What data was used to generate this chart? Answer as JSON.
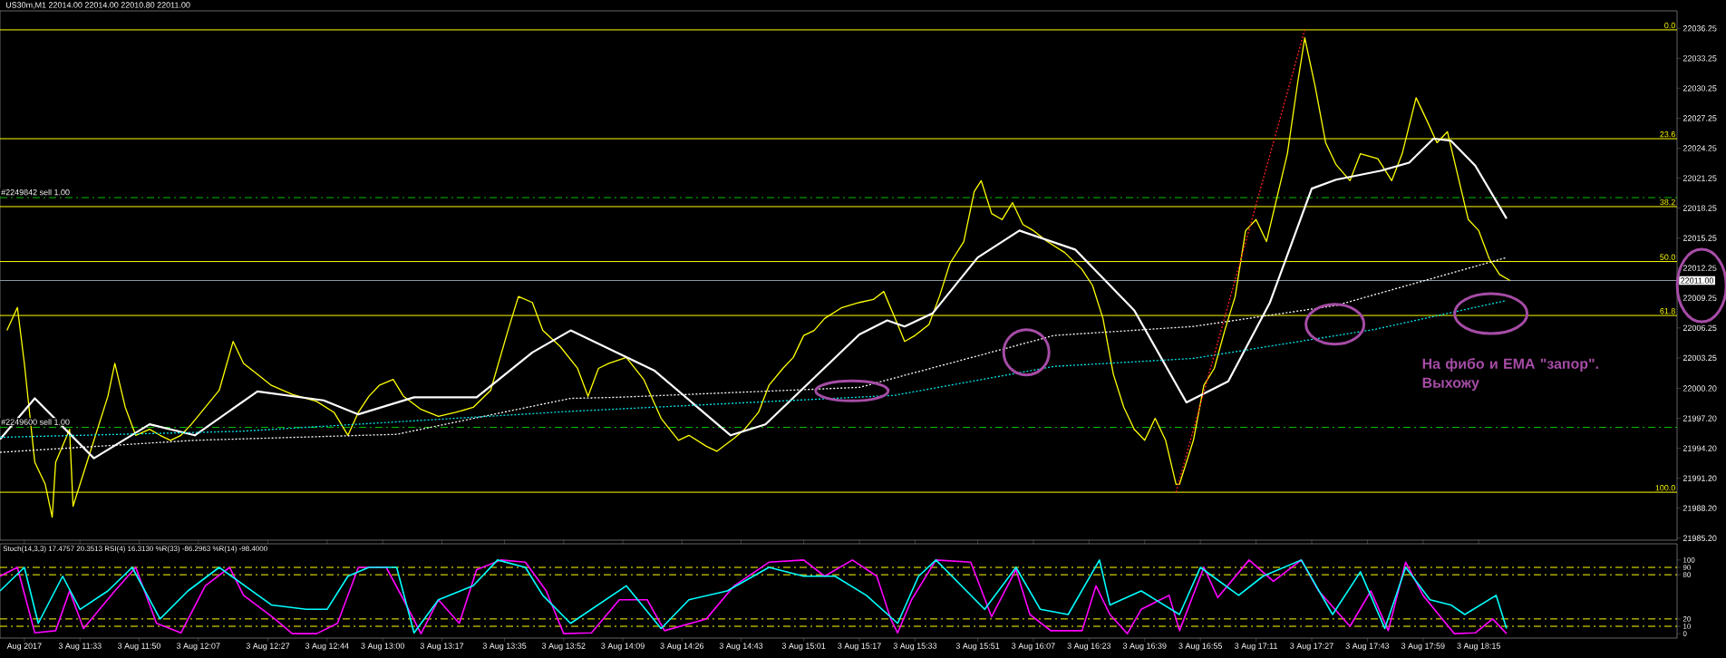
{
  "chart_data": [
    {
      "type": "line",
      "title": "US30m,M1  22014.00 22014.00 22010.80 22011.00",
      "xlim": [
        "2017-08-03T11:10",
        "2017-08-03T19:12"
      ],
      "ylim": [
        21985.0,
        22038.0
      ],
      "tick_labels": "y",
      "yticks": [
        {
          "value": 21985.2,
          "label": "21985.20"
        },
        {
          "value": 21988.2,
          "label": "21988.20"
        },
        {
          "value": 21991.2,
          "label": "21991.20"
        },
        {
          "value": 21994.2,
          "label": "21994.20"
        },
        {
          "value": 21997.2,
          "label": "21997.20"
        },
        {
          "value": 22000.2,
          "label": "22000.20"
        },
        22003.25,
        22006.25,
        22009.25,
        22012.25,
        22015.25,
        22018.25,
        22021.25,
        22024.25,
        22027.25,
        22030.25,
        22033.25,
        22036.25
      ],
      "series": [
        {
          "color": "#ffff00",
          "x": [
            "2017-08-03T11:12",
            "2017-08-03T11:15",
            "2017-08-03T11:17",
            "2017-08-03T11:20",
            "2017-08-03T11:23",
            "2017-08-03T11:25",
            "2017-08-03T11:26",
            "2017-08-03T11:30",
            "2017-08-03T11:31",
            "2017-08-03T11:35",
            "2017-08-03T11:38",
            "2017-08-03T11:41",
            "2017-08-03T11:43",
            "2017-08-03T11:46",
            "2017-08-03T11:49",
            "2017-08-03T11:53",
            "2017-08-03T11:56",
            "2017-08-03T11:59",
            "2017-08-03T12:02",
            "2017-08-03T12:05",
            "2017-08-03T12:09",
            "2017-08-03T12:13",
            "2017-08-03T12:17",
            "2017-08-03T12:20",
            "2017-08-03T12:24",
            "2017-08-03T12:28",
            "2017-08-03T12:34",
            "2017-08-03T12:41",
            "2017-08-03T12:46",
            "2017-08-03T12:50",
            "2017-08-03T12:53",
            "2017-08-03T12:56",
            "2017-08-03T12:59",
            "2017-08-03T13:03",
            "2017-08-03T13:06",
            "2017-08-03T13:11",
            "2017-08-03T13:16",
            "2017-08-03T13:21",
            "2017-08-03T13:26",
            "2017-08-03T13:31",
            "2017-08-03T13:36",
            "2017-08-03T13:39",
            "2017-08-03T13:43",
            "2017-08-03T13:46",
            "2017-08-03T13:51",
            "2017-08-03T13:56",
            "2017-08-03T13:59",
            "2017-08-03T14:02",
            "2017-08-03T14:05",
            "2017-08-03T14:10",
            "2017-08-03T14:15",
            "2017-08-03T14:20",
            "2017-08-03T14:25",
            "2017-08-03T14:28",
            "2017-08-03T14:33",
            "2017-08-03T14:36",
            "2017-08-03T14:41",
            "2017-08-03T14:44",
            "2017-08-03T14:48",
            "2017-08-03T14:51",
            "2017-08-03T14:55",
            "2017-08-03T14:58",
            "2017-08-03T15:01",
            "2017-08-03T15:04",
            "2017-08-03T15:07",
            "2017-08-03T15:12",
            "2017-08-03T15:17",
            "2017-08-03T15:21",
            "2017-08-03T15:24",
            "2017-08-03T15:28",
            "2017-08-03T15:30",
            "2017-08-03T15:33",
            "2017-08-03T15:37",
            "2017-08-03T15:40",
            "2017-08-03T15:43",
            "2017-08-03T15:47",
            "2017-08-03T15:50",
            "2017-08-03T15:52",
            "2017-08-03T15:55",
            "2017-08-03T15:58",
            "2017-08-03T16:01",
            "2017-08-03T16:04",
            "2017-08-03T16:07",
            "2017-08-03T16:11",
            "2017-08-03T16:16",
            "2017-08-03T16:21",
            "2017-08-03T16:24",
            "2017-08-03T16:27",
            "2017-08-03T16:30",
            "2017-08-03T16:33",
            "2017-08-03T16:36",
            "2017-08-03T16:39",
            "2017-08-03T16:42",
            "2017-08-03T16:45",
            "2017-08-03T16:48",
            "2017-08-03T16:49",
            "2017-08-03T16:53",
            "2017-08-03T16:56",
            "2017-08-03T16:59",
            "2017-08-03T17:02",
            "2017-08-03T17:05",
            "2017-08-03T17:08",
            "2017-08-03T17:11",
            "2017-08-03T17:14",
            "2017-08-03T17:17",
            "2017-08-03T17:20",
            "2017-08-03T17:23",
            "2017-08-03T17:25",
            "2017-08-03T17:28",
            "2017-08-03T17:31",
            "2017-08-03T17:34",
            "2017-08-03T17:38",
            "2017-08-03T17:41",
            "2017-08-03T17:46",
            "2017-08-03T17:50",
            "2017-08-03T17:53",
            "2017-08-03T17:57",
            "2017-08-03T18:00",
            "2017-08-03T18:03",
            "2017-08-03T18:06",
            "2017-08-03T18:09",
            "2017-08-03T18:12",
            "2017-08-03T18:15",
            "2017-08-03T18:18",
            "2017-08-03T18:21",
            "2017-08-03T18:24"
          ],
          "values": [
            22006.0,
            22008.3,
            22002.7,
            21992.8,
            21990.6,
            21987.3,
            21992.8,
            21996.1,
            21988.4,
            21992.8,
            21996.1,
            21999.4,
            22002.7,
            21998.3,
            21995.5,
            21996.1,
            21995.5,
            21995.0,
            21995.5,
            21996.6,
            21998.3,
            22000.0,
            22004.9,
            22002.7,
            22001.6,
            22000.5,
            21999.6,
            21998.9,
            21997.8,
            21995.5,
            21997.8,
            21999.4,
            22000.5,
            22001.1,
            21999.4,
            21998.1,
            21997.4,
            21997.8,
            21998.3,
            22000.0,
            22006.0,
            22009.4,
            22008.8,
            22006.0,
            22004.4,
            22002.2,
            21999.4,
            22002.2,
            22002.7,
            22003.3,
            22001.1,
            21997.2,
            21995.0,
            21995.5,
            21994.4,
            21993.9,
            21995.2,
            21996.1,
            21997.8,
            22000.5,
            22002.2,
            22003.3,
            22005.5,
            22006.0,
            22007.2,
            22008.3,
            22008.8,
            22009.1,
            22009.9,
            22006.6,
            22004.9,
            22005.5,
            22006.6,
            22009.4,
            22012.7,
            22014.9,
            22019.9,
            22021.0,
            22017.7,
            22017.1,
            22018.8,
            22016.6,
            22016.0,
            22014.9,
            22013.8,
            22012.1,
            22010.5,
            22007.2,
            22001.6,
            21998.3,
            21996.1,
            21995.0,
            21997.2,
            21995.0,
            21990.6,
            21990.6,
            21995.0,
            22000.5,
            22002.2,
            22006.0,
            22009.4,
            22016.0,
            22017.1,
            22014.9,
            22019.3,
            22023.7,
            22030.9,
            22035.3,
            22030.4,
            22024.8,
            22022.6,
            22021.0,
            22023.7,
            22023.2,
            22021.0,
            22023.7,
            22029.3,
            22027.1,
            22024.8,
            22025.9,
            22021.5,
            22017.1,
            22016.0,
            22013.2,
            22011.6,
            22011.0
          ]
        },
        {
          "color": "#ffffff",
          "x": [
            "2017-08-03T11:10",
            "2017-08-03T11:20",
            "2017-08-03T11:37",
            "2017-08-03T11:53",
            "2017-08-03T12:06",
            "2017-08-03T12:24",
            "2017-08-03T12:43",
            "2017-08-03T12:53",
            "2017-08-03T13:09",
            "2017-08-03T13:27",
            "2017-08-03T13:43",
            "2017-08-03T13:54",
            "2017-08-03T14:18",
            "2017-08-03T14:40",
            "2017-08-03T14:50",
            "2017-08-03T15:17",
            "2017-08-03T15:25",
            "2017-08-03T15:30",
            "2017-08-03T15:38",
            "2017-08-03T15:51",
            "2017-08-03T16:03",
            "2017-08-03T16:19",
            "2017-08-03T16:36",
            "2017-08-03T16:51",
            "2017-08-03T17:03",
            "2017-08-03T17:15",
            "2017-08-03T17:27",
            "2017-08-03T17:34",
            "2017-08-03T17:47",
            "2017-08-03T17:55",
            "2017-08-03T18:02",
            "2017-08-03T18:07",
            "2017-08-03T18:14",
            "2017-08-03T18:23"
          ],
          "values": [
            21995.1,
            21999.2,
            21993.2,
            21996.6,
            21995.5,
            21999.9,
            21999.0,
            21997.6,
            21999.3,
            21999.3,
            22003.8,
            22006.0,
            22002.0,
            21995.5,
            21996.6,
            22005.6,
            22007.0,
            22006.4,
            22007.7,
            22013.3,
            22016.0,
            22014.1,
            22008.0,
            21998.8,
            22000.9,
            22008.8,
            22020.2,
            22021.1,
            22022.0,
            22022.8,
            22025.2,
            22025.0,
            22022.5,
            22017.2
          ]
        },
        {
          "color": "#ffffff",
          "line_style": "dotted",
          "x": [
            "2017-08-03T11:10",
            "2017-08-03T12:06",
            "2017-08-03T13:04",
            "2017-08-03T13:54",
            "2017-08-03T14:07",
            "2017-08-03T15:17",
            "2017-08-03T16:13",
            "2017-08-03T16:53",
            "2017-08-03T17:34",
            "2017-08-03T18:23"
          ],
          "values": [
            21993.8,
            21995.0,
            21995.6,
            21999.2,
            21999.3,
            22000.3,
            22005.5,
            22006.4,
            22008.5,
            22013.3
          ]
        },
        {
          "color": "#00e5ee",
          "line_style": "dotted",
          "x": [
            "2017-08-03T11:10",
            "2017-08-03T12:19",
            "2017-08-03T13:54",
            "2017-08-03T15:27",
            "2017-08-03T16:13",
            "2017-08-03T16:53",
            "2017-08-03T17:45",
            "2017-08-03T18:23"
          ],
          "values": [
            21995.3,
            21995.9,
            21997.9,
            21999.5,
            22002.4,
            22003.2,
            22006.1,
            22009.0
          ]
        },
        {
          "color": "#ff2020",
          "line_style": "dotted",
          "x": [
            "2017-08-03T16:48",
            "2017-08-03T17:25"
          ],
          "values": [
            21989.8,
            22036.1
          ]
        }
      ],
      "ref_lines": [
        {
          "axis": "y",
          "value": 22019.3,
          "label": "#2249842 sell 1.00",
          "color": "#00c000",
          "line_style": "dashed"
        },
        {
          "axis": "y",
          "value": 21996.3,
          "label": "#2249600 sell 1.00",
          "color": "#00c000",
          "line_style": "dashed"
        },
        {
          "axis": "y",
          "value": 22011.0,
          "label": "22011.00",
          "color": "#8c96a0",
          "line_style": "solid"
        },
        {
          "axis": "y",
          "value": 22036.1,
          "color": "#ffff00",
          "line_style": "solid"
        },
        {
          "axis": "y",
          "value": 22025.2,
          "color": "#ffff00",
          "line_style": "solid"
        },
        {
          "axis": "y",
          "value": 22018.4,
          "color": "#ffff00",
          "line_style": "solid"
        },
        {
          "axis": "y",
          "value": 22012.9,
          "color": "#ffff00",
          "line_style": "solid"
        },
        {
          "axis": "y",
          "value": 22007.5,
          "color": "#ffff00",
          "line_style": "solid"
        },
        {
          "axis": "y",
          "value": 21989.8,
          "color": "#ffff00",
          "line_style": "solid"
        }
      ],
      "annotations": [
        "На фибо и EMA \"запор\". Выхожу",
        {
          "text": "0.0",
          "x": "2017-08-03T19:12",
          "y": 22036.1
        },
        {
          "text": "23.6",
          "x": "2017-08-03T19:12",
          "y": 22025.2
        },
        {
          "text": "38.2",
          "x": "2017-08-03T19:12",
          "y": 22018.4
        },
        {
          "text": "50.0",
          "x": "2017-08-03T19:12",
          "y": 22012.9
        },
        {
          "text": "61.8",
          "x": "2017-08-03T19:12",
          "y": 22007.5
        },
        {
          "text": "100.0",
          "x": "2017-08-03T19:12",
          "y": 21989.8
        }
      ]
    },
    {
      "type": "line",
      "title": "Stoch(14,3,3) 17.4757 20.3513  RSI(4) 16.3130  %R(33) -86.2963  %R(14) -98.4000",
      "xlim": [
        "2017-08-03T11:10",
        "2017-08-03T19:12"
      ],
      "ylim": [
        -6,
        122
      ],
      "yticks": [
        0,
        10,
        20,
        80,
        90,
        100
      ],
      "xticks": [
        {
          "value": "2017-08-03T11:17",
          "label": "Aug 2017"
        },
        {
          "value": "2017-08-03T11:33",
          "label": "3 Aug 11:33"
        },
        {
          "value": "2017-08-03T11:50",
          "label": "3 Aug 11:50"
        },
        {
          "value": "2017-08-03T12:07",
          "label": "3 Aug 12:07"
        },
        {
          "value": "2017-08-03T12:27",
          "label": "3 Aug 12:27"
        },
        {
          "value": "2017-08-03T12:44",
          "label": "3 Aug 12:44"
        },
        {
          "value": "2017-08-03T13:00",
          "label": "3 Aug 13:00"
        },
        {
          "value": "2017-08-03T13:17",
          "label": "3 Aug 13:17"
        },
        {
          "value": "2017-08-03T13:35",
          "label": "3 Aug 13:35"
        },
        {
          "value": "2017-08-03T13:52",
          "label": "3 Aug 13:52"
        },
        {
          "value": "2017-08-03T14:09",
          "label": "3 Aug 14:09"
        },
        {
          "value": "2017-08-03T14:26",
          "label": "3 Aug 14:26"
        },
        {
          "value": "2017-08-03T14:43",
          "label": "3 Aug 14:43"
        },
        {
          "value": "2017-08-03T15:01",
          "label": "3 Aug 15:01"
        },
        {
          "value": "2017-08-03T15:17",
          "label": "3 Aug 15:17"
        },
        {
          "value": "2017-08-03T15:33",
          "label": "3 Aug 15:33"
        },
        {
          "value": "2017-08-03T15:51",
          "label": "3 Aug 15:51"
        },
        {
          "value": "2017-08-03T16:07",
          "label": "3 Aug 16:07"
        },
        {
          "value": "2017-08-03T16:23",
          "label": "3 Aug 16:23"
        },
        {
          "value": "2017-08-03T16:39",
          "label": "3 Aug 16:39"
        },
        {
          "value": "2017-08-03T16:55",
          "label": "3 Aug 16:55"
        },
        {
          "value": "2017-08-03T17:11",
          "label": "3 Aug 17:11"
        },
        {
          "value": "2017-08-03T17:27",
          "label": "3 Aug 17:27"
        },
        {
          "value": "2017-08-03T17:43",
          "label": "3 Aug 17:43"
        },
        {
          "value": "2017-08-03T17:59",
          "label": "3 Aug 17:59"
        },
        {
          "value": "2017-08-03T18:15",
          "label": "3 Aug 18:15"
        }
      ],
      "series": [
        {
          "color": "#ff00ff",
          "x": [
            "2017-08-03T11:10",
            "2017-08-03T11:15",
            "2017-08-03T11:20",
            "2017-08-03T11:26",
            "2017-08-03T11:30",
            "2017-08-03T11:34",
            "2017-08-03T11:43",
            "2017-08-03T11:49",
            "2017-08-03T11:55",
            "2017-08-03T12:02",
            "2017-08-03T12:09",
            "2017-08-03T12:16",
            "2017-08-03T12:20",
            "2017-08-03T12:29",
            "2017-08-03T12:34",
            "2017-08-03T12:41",
            "2017-08-03T12:47",
            "2017-08-03T12:53",
            "2017-08-03T13:01",
            "2017-08-03T13:06",
            "2017-08-03T13:11",
            "2017-08-03T13:16",
            "2017-08-03T13:22",
            "2017-08-03T13:27",
            "2017-08-03T13:34",
            "2017-08-03T13:41",
            "2017-08-03T13:47",
            "2017-08-03T13:52",
            "2017-08-03T14:00",
            "2017-08-03T14:08",
            "2017-08-03T14:16",
            "2017-08-03T14:21",
            "2017-08-03T14:33",
            "2017-08-03T14:41",
            "2017-08-03T14:51",
            "2017-08-03T15:01",
            "2017-08-03T15:07",
            "2017-08-03T15:15",
            "2017-08-03T15:22",
            "2017-08-03T15:26",
            "2017-08-03T15:28",
            "2017-08-03T15:32",
            "2017-08-03T15:39",
            "2017-08-03T15:49",
            "2017-08-03T15:55",
            "2017-08-03T16:02",
            "2017-08-03T16:06",
            "2017-08-03T16:12",
            "2017-08-03T16:21",
            "2017-08-03T16:25",
            "2017-08-03T16:29",
            "2017-08-03T16:34",
            "2017-08-03T16:38",
            "2017-08-03T16:46",
            "2017-08-03T16:49",
            "2017-08-03T16:56",
            "2017-08-03T17:00",
            "2017-08-03T17:09",
            "2017-08-03T17:16",
            "2017-08-03T17:24",
            "2017-08-03T17:29",
            "2017-08-03T17:38",
            "2017-08-03T17:44",
            "2017-08-03T17:49",
            "2017-08-03T17:54",
            "2017-08-03T17:59",
            "2017-08-03T18:05",
            "2017-08-03T18:08",
            "2017-08-03T18:14",
            "2017-08-03T18:19",
            "2017-08-03T18:23"
          ],
          "values": [
            78,
            90,
            1,
            4,
            58,
            7,
            58,
            90,
            14,
            1,
            65,
            90,
            52,
            20,
            0,
            0,
            14,
            90,
            90,
            46,
            0,
            46,
            14,
            87,
            100,
            97,
            58,
            0,
            1,
            46,
            46,
            4,
            20,
            65,
            97,
            100,
            78,
            100,
            78,
            20,
            1,
            46,
            100,
            97,
            23,
            87,
            26,
            4,
            4,
            65,
            26,
            0,
            33,
            52,
            4,
            90,
            49,
            100,
            71,
            100,
            58,
            10,
            58,
            4,
            97,
            52,
            17,
            0,
            1,
            20,
            0
          ]
        },
        {
          "color": "#00ffff",
          "x": [
            "2017-08-03T11:10",
            "2017-08-03T11:17",
            "2017-08-03T11:21",
            "2017-08-03T11:28",
            "2017-08-03T11:33",
            "2017-08-03T11:41",
            "2017-08-03T11:48",
            "2017-08-03T11:56",
            "2017-08-03T12:04",
            "2017-08-03T12:13",
            "2017-08-03T12:28",
            "2017-08-03T12:38",
            "2017-08-03T12:44",
            "2017-08-03T12:50",
            "2017-08-03T12:56",
            "2017-08-03T13:04",
            "2017-08-03T13:09",
            "2017-08-03T13:16",
            "2017-08-03T13:26",
            "2017-08-03T13:33",
            "2017-08-03T13:41",
            "2017-08-03T13:46",
            "2017-08-03T13:54",
            "2017-08-03T14:10",
            "2017-08-03T14:20",
            "2017-08-03T14:28",
            "2017-08-03T14:39",
            "2017-08-03T14:51",
            "2017-08-03T15:01",
            "2017-08-03T15:10",
            "2017-08-03T15:19",
            "2017-08-03T15:28",
            "2017-08-03T15:34",
            "2017-08-03T15:39",
            "2017-08-03T15:53",
            "2017-08-03T16:02",
            "2017-08-03T16:09",
            "2017-08-03T16:17",
            "2017-08-03T16:26",
            "2017-08-03T16:29",
            "2017-08-03T16:38",
            "2017-08-03T16:49",
            "2017-08-03T16:55",
            "2017-08-03T17:06",
            "2017-08-03T17:13",
            "2017-08-03T17:24",
            "2017-08-03T17:33",
            "2017-08-03T17:41",
            "2017-08-03T17:48",
            "2017-08-03T17:54",
            "2017-08-03T18:01",
            "2017-08-03T18:07",
            "2017-08-03T18:11",
            "2017-08-03T18:20",
            "2017-08-03T18:23"
          ],
          "values": [
            58,
            90,
            14,
            78,
            33,
            58,
            90,
            20,
            58,
            90,
            39,
            33,
            33,
            78,
            90,
            90,
            1,
            46,
            65,
            100,
            90,
            52,
            14,
            65,
            7,
            46,
            58,
            90,
            78,
            78,
            52,
            14,
            78,
            100,
            33,
            90,
            33,
            26,
            100,
            39,
            58,
            26,
            90,
            52,
            78,
            100,
            26,
            84,
            7,
            90,
            46,
            39,
            26,
            52,
            7
          ]
        }
      ],
      "ref_lines": [
        {
          "axis": "y",
          "value": 10,
          "color": "#ffff00",
          "line_style": "dashed"
        },
        {
          "axis": "y",
          "value": 20,
          "color": "#ffff00",
          "line_style": "dashed"
        },
        {
          "axis": "y",
          "value": 80,
          "color": "#ffff00",
          "line_style": "dashed"
        },
        {
          "axis": "y",
          "value": 90,
          "color": "#ffff00",
          "line_style": "dashed"
        }
      ]
    }
  ]
}
